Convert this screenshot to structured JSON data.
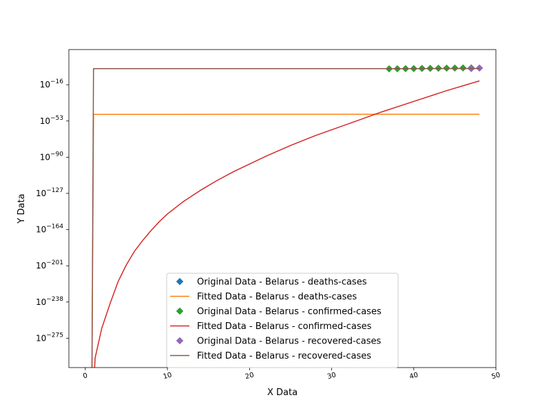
{
  "chart_data": {
    "type": "line",
    "title": "",
    "xlabel": "X Data",
    "ylabel": "Y Data",
    "xlim": [
      -2,
      50
    ],
    "ylim_log10": [
      -305,
      20
    ],
    "yscale": "log",
    "xticks": [
      0,
      10,
      20,
      30,
      40,
      50
    ],
    "yticks": [
      {
        "exp": -16,
        "label_exp": "−16"
      },
      {
        "exp": -53,
        "label_exp": "−53"
      },
      {
        "exp": -90,
        "label_exp": "−90"
      },
      {
        "exp": -127,
        "label_exp": "−127"
      },
      {
        "exp": -164,
        "label_exp": "−164"
      },
      {
        "exp": -201,
        "label_exp": "−201"
      },
      {
        "exp": -238,
        "label_exp": "−238"
      },
      {
        "exp": -275,
        "label_exp": "−275"
      }
    ],
    "grid": false,
    "legend_position": "lower center",
    "series": [
      {
        "name": "Original Data - Belarus - deaths-cases",
        "kind": "markers",
        "marker": "diamond",
        "color": "#1f77b4",
        "x": [],
        "log10_y": []
      },
      {
        "name": "Fitted Data - Belarus - deaths-cases",
        "kind": "line",
        "color": "#ff7f0e",
        "x": [
          0.8,
          1,
          2,
          5,
          10,
          20,
          30,
          40,
          48
        ],
        "log10_y": [
          -330,
          -46.3,
          -46.2,
          -46.2,
          -46.2,
          -46.1,
          -46.1,
          -46.1,
          -46.1
        ]
      },
      {
        "name": "Original Data - Belarus - confirmed-cases",
        "kind": "markers",
        "marker": "diamond",
        "color": "#2ca02c",
        "x": [
          37,
          38,
          39,
          40,
          41,
          42,
          43,
          44,
          45,
          46,
          47
        ],
        "log10_y": [
          0.3,
          0.4,
          0.5,
          0.6,
          0.7,
          0.8,
          0.9,
          1.0,
          1.1,
          1.2,
          1.3
        ]
      },
      {
        "name": "Fitted Data - Belarus - confirmed-cases",
        "kind": "line",
        "color": "#d62728",
        "x": [
          1,
          1.2,
          2,
          3,
          4,
          5,
          6,
          7,
          8,
          9,
          10,
          12,
          14,
          16,
          18,
          20,
          22,
          25,
          28,
          30,
          33,
          36,
          40,
          44,
          48
        ],
        "log10_y": [
          -330,
          -295,
          -265,
          -240,
          -217,
          -200,
          -186,
          -175,
          -165,
          -156,
          -148,
          -135,
          -124,
          -114,
          -105,
          -97,
          -89,
          -78,
          -68,
          -62,
          -53,
          -44,
          -33,
          -22,
          -12
        ]
      },
      {
        "name": "Original Data - Belarus - recovered-cases",
        "kind": "markers",
        "marker": "diamond",
        "color": "#9467bd",
        "x": [
          47,
          48
        ],
        "log10_y": [
          0.6,
          1.1
        ]
      },
      {
        "name": "Fitted Data - Belarus - recovered-cases",
        "kind": "line",
        "color": "#8c564b",
        "x": [
          0.8,
          1,
          2,
          10,
          20,
          30,
          40,
          48
        ],
        "log10_y": [
          -330,
          0.5,
          0.5,
          0.5,
          0.5,
          0.5,
          0.5,
          0.6
        ]
      }
    ]
  }
}
